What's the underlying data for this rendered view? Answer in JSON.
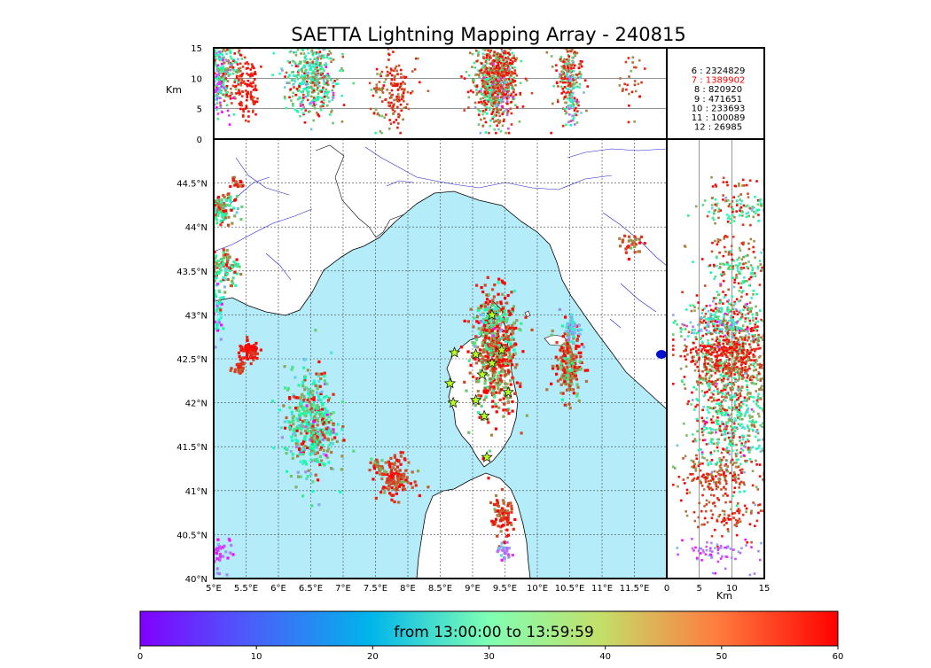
{
  "chart_data": {
    "type": "scatter",
    "title": "SAETTA Lightning Mapping Array - 240815",
    "map": {
      "xlim": [
        5.0,
        12.0
      ],
      "ylim": [
        40.0,
        45.0
      ],
      "x_ticks": [
        "5°E",
        "5.5°E",
        "6°E",
        "6.5°E",
        "7°E",
        "7.5°E",
        "8°E",
        "8.5°E",
        "9°E",
        "9.5°E",
        "10°E",
        "10.5°E",
        "11°E",
        "11.5°E"
      ],
      "y_ticks": [
        "40°N",
        "40.5°N",
        "41°N",
        "41.5°N",
        "42°N",
        "42.5°N",
        "43°N",
        "43.5°N",
        "44°N",
        "44.5°N"
      ],
      "grid": true,
      "sea_color": "#b5ecfa",
      "land_color": "#ffffff"
    },
    "altitude_panel": {
      "ylabel": "Km",
      "ylim": [
        0,
        15
      ],
      "y_ticks": [
        "0",
        "5",
        "10",
        "15"
      ]
    },
    "side_panel": {
      "xlabel": "Km",
      "xlim": [
        0,
        15
      ],
      "x_ticks": [
        "0",
        "5",
        "10",
        "15"
      ]
    },
    "station_counts": [
      {
        "station": "6",
        "count": "2324829",
        "color": "#000000"
      },
      {
        "station": "7",
        "count": "1389902",
        "color": "#ff0000"
      },
      {
        "station": "8",
        "count": "820920",
        "color": "#000000"
      },
      {
        "station": "9",
        "count": "471651",
        "color": "#000000"
      },
      {
        "station": "10",
        "count": "233693",
        "color": "#000000"
      },
      {
        "station": "11",
        "count": "100089",
        "color": "#000000"
      },
      {
        "station": "12",
        "count": "26985",
        "color": "#000000"
      }
    ],
    "colorbar": {
      "label": "from 13:00:00 to 13:59:59",
      "range": [
        0,
        60
      ],
      "ticks": [
        "0",
        "10",
        "20",
        "30",
        "40",
        "50",
        "60"
      ],
      "colormap": "rainbow"
    },
    "stations": [
      {
        "lon": 9.3,
        "lat": 43.0
      },
      {
        "lon": 8.72,
        "lat": 42.57
      },
      {
        "lon": 9.05,
        "lat": 42.55
      },
      {
        "lon": 9.45,
        "lat": 42.6
      },
      {
        "lon": 9.3,
        "lat": 42.45
      },
      {
        "lon": 9.15,
        "lat": 42.32
      },
      {
        "lon": 8.65,
        "lat": 42.22
      },
      {
        "lon": 9.55,
        "lat": 42.12
      },
      {
        "lon": 8.7,
        "lat": 42.0
      },
      {
        "lon": 9.05,
        "lat": 42.03
      },
      {
        "lon": 9.18,
        "lat": 41.85
      },
      {
        "lon": 9.22,
        "lat": 41.38
      }
    ],
    "flash_clusters": [
      {
        "lon": 9.35,
        "lat": 42.55,
        "lon_spread": 0.18,
        "lat_spread": 0.35,
        "alt": 10,
        "alt_spread": 3.5,
        "t": 52,
        "t_spread": 10,
        "n": 520
      },
      {
        "lon": 9.3,
        "lat": 42.9,
        "lon_spread": 0.12,
        "lat_spread": 0.15,
        "alt": 9,
        "alt_spread": 3,
        "t": 40,
        "t_spread": 15,
        "n": 140
      },
      {
        "lon": 10.48,
        "lat": 42.45,
        "lon_spread": 0.1,
        "lat_spread": 0.2,
        "alt": 10,
        "alt_spread": 3,
        "t": 52,
        "t_spread": 10,
        "n": 220
      },
      {
        "lon": 10.55,
        "lat": 42.85,
        "lon_spread": 0.06,
        "lat_spread": 0.1,
        "alt": 8,
        "alt_spread": 3,
        "t": 18,
        "t_spread": 6,
        "n": 50
      },
      {
        "lon": 6.5,
        "lat": 41.75,
        "lon_spread": 0.2,
        "lat_spread": 0.3,
        "alt": 10,
        "alt_spread": 3,
        "t": 38,
        "t_spread": 16,
        "n": 460
      },
      {
        "lon": 5.55,
        "lat": 42.58,
        "lon_spread": 0.08,
        "lat_spread": 0.05,
        "alt": 9,
        "alt_spread": 3,
        "t": 58,
        "t_spread": 2,
        "n": 90
      },
      {
        "lon": 5.4,
        "lat": 42.4,
        "lon_spread": 0.05,
        "lat_spread": 0.03,
        "alt": 9,
        "alt_spread": 3,
        "t": 56,
        "t_spread": 2,
        "n": 30
      },
      {
        "lon": 7.8,
        "lat": 41.15,
        "lon_spread": 0.12,
        "lat_spread": 0.12,
        "alt": 8,
        "alt_spread": 3,
        "t": 55,
        "t_spread": 4,
        "n": 140
      },
      {
        "lon": 7.55,
        "lat": 41.28,
        "lon_spread": 0.05,
        "lat_spread": 0.05,
        "alt": 7,
        "alt_spread": 3,
        "t": 50,
        "t_spread": 6,
        "n": 30
      },
      {
        "lon": 9.45,
        "lat": 40.7,
        "lon_spread": 0.08,
        "lat_spread": 0.12,
        "alt": 9,
        "alt_spread": 3,
        "t": 55,
        "t_spread": 4,
        "n": 90
      },
      {
        "lon": 9.5,
        "lat": 40.3,
        "lon_spread": 0.05,
        "lat_spread": 0.05,
        "alt": 8,
        "alt_spread": 3,
        "t": 10,
        "t_spread": 4,
        "n": 25
      },
      {
        "lon": 5.15,
        "lat": 44.2,
        "lon_spread": 0.12,
        "lat_spread": 0.08,
        "alt": 11,
        "alt_spread": 3,
        "t": 45,
        "t_spread": 12,
        "n": 110
      },
      {
        "lon": 5.15,
        "lat": 43.55,
        "lon_spread": 0.12,
        "lat_spread": 0.1,
        "alt": 11,
        "alt_spread": 3,
        "t": 45,
        "t_spread": 14,
        "n": 110
      },
      {
        "lon": 5.05,
        "lat": 43.05,
        "lon_spread": 0.05,
        "lat_spread": 0.2,
        "alt": 10,
        "alt_spread": 3,
        "t": 22,
        "t_spread": 12,
        "n": 50
      },
      {
        "lon": 5.35,
        "lat": 44.48,
        "lon_spread": 0.05,
        "lat_spread": 0.03,
        "alt": 10,
        "alt_spread": 3,
        "t": 55,
        "t_spread": 4,
        "n": 20
      },
      {
        "lon": 5.1,
        "lat": 40.3,
        "lon_spread": 0.1,
        "lat_spread": 0.1,
        "alt": 8,
        "alt_spread": 3,
        "t": 6,
        "t_spread": 4,
        "n": 40
      },
      {
        "lon": 11.45,
        "lat": 43.8,
        "lon_spread": 0.1,
        "lat_spread": 0.05,
        "alt": 10,
        "alt_spread": 3,
        "t": 55,
        "t_spread": 4,
        "n": 30
      }
    ]
  }
}
